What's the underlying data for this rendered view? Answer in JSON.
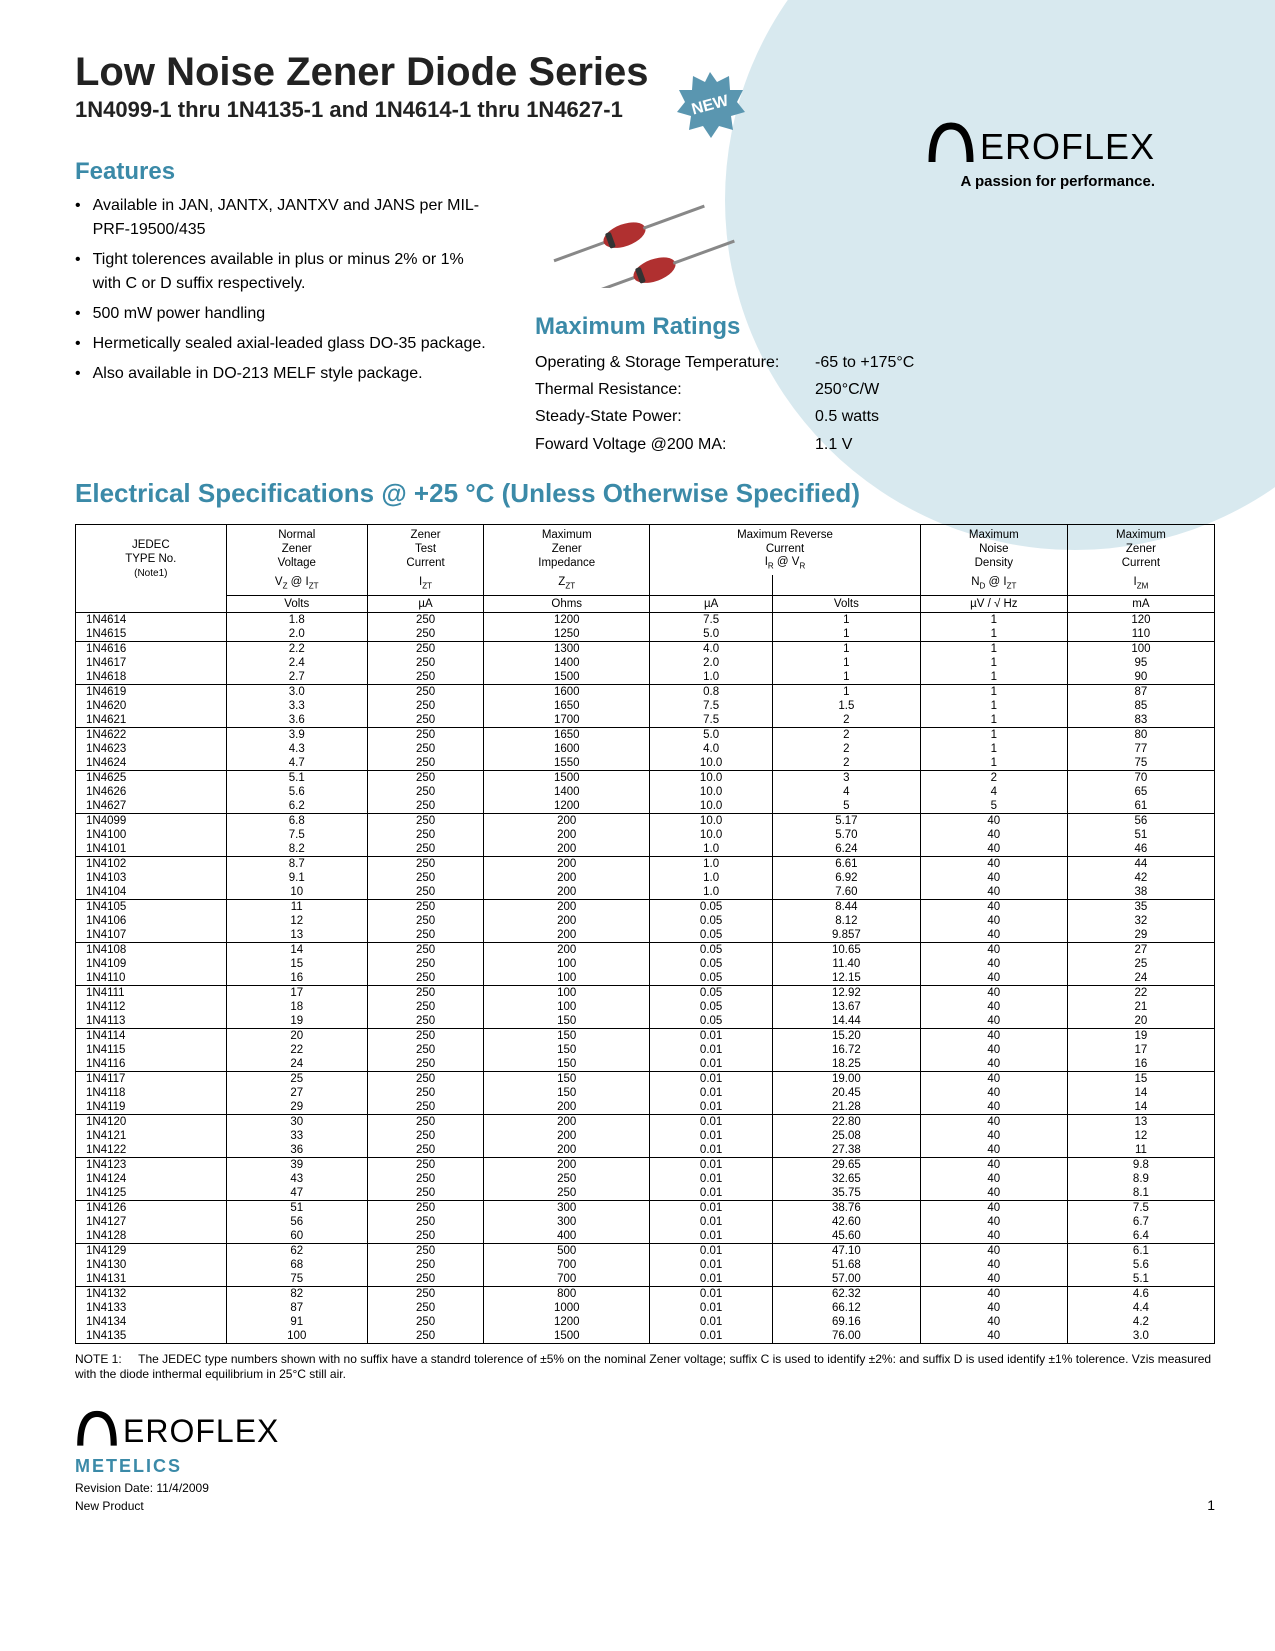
{
  "colors": {
    "accent": "#3b8aa8",
    "bg_circle": "#d8e9ef",
    "text": "#000000",
    "title": "#222222"
  },
  "header": {
    "title": "Low Noise Zener Diode Series",
    "subtitle": "1N4099-1 thru 1N4135-1 and 1N4614-1 thru 1N4627-1",
    "new_badge": "NEW"
  },
  "logo": {
    "name": "EROFLEX",
    "tagline": "A passion for performance.",
    "footer_sub": "METELICS"
  },
  "features": {
    "heading": "Features",
    "items": [
      "Available in JAN, JANTX, JANTXV and JANS per MIL-PRF-19500/435",
      "Tight tolerences available in plus or minus 2% or 1% with C or D suffix respectively.",
      "500 mW power handling",
      "Hermetically sealed axial-leaded glass DO-35 package.",
      "Also available in DO-213 MELF style package."
    ]
  },
  "ratings": {
    "heading": "Maximum Ratings",
    "rows": [
      {
        "label": "Operating & Storage Temperature:",
        "value": "-65 to +175°C"
      },
      {
        "label": "Thermal Resistance:",
        "value": "250°C/W"
      },
      {
        "label": "Steady-State Power:",
        "value": "0.5 watts"
      },
      {
        "label": "Foward Voltage @200 MA:",
        "value": "1.1 V"
      }
    ]
  },
  "elec": {
    "heading": "Electrical Specifications @ +25 °C (Unless Otherwise Specified)",
    "col_headers": [
      {
        "l1": "JEDEC TYPE No.",
        "l2": "(Note1)",
        "unit": ""
      },
      {
        "l1": "Normal Zener Voltage",
        "l2": "V_Z @ I_ZT",
        "unit": "Volts"
      },
      {
        "l1": "Zener Test Current",
        "l2": "I_ZT",
        "unit": "µA"
      },
      {
        "l1": "Maximum Zener Impedance",
        "l2": "Z_ZT",
        "unit": "Ohms"
      },
      {
        "l1": "Maximum Reverse Current I_R @ V_R",
        "l2": "",
        "unit": "µA",
        "unit2": "Volts"
      },
      {
        "l1": "Maximum Noise Density",
        "l2": "N_D @ I_ZT",
        "unit": "µV / √ Hz"
      },
      {
        "l1": "Maximum Zener Current",
        "l2": "I_ZM",
        "unit": "mA"
      }
    ],
    "groups": [
      [
        [
          "1N4614",
          "1.8",
          "250",
          "1200",
          "7.5",
          "1",
          "1",
          "120"
        ],
        [
          "1N4615",
          "2.0",
          "250",
          "1250",
          "5.0",
          "1",
          "1",
          "110"
        ]
      ],
      [
        [
          "1N4616",
          "2.2",
          "250",
          "1300",
          "4.0",
          "1",
          "1",
          "100"
        ],
        [
          "1N4617",
          "2.4",
          "250",
          "1400",
          "2.0",
          "1",
          "1",
          "95"
        ],
        [
          "1N4618",
          "2.7",
          "250",
          "1500",
          "1.0",
          "1",
          "1",
          "90"
        ]
      ],
      [
        [
          "1N4619",
          "3.0",
          "250",
          "1600",
          "0.8",
          "1",
          "1",
          "87"
        ],
        [
          "1N4620",
          "3.3",
          "250",
          "1650",
          "7.5",
          "1.5",
          "1",
          "85"
        ],
        [
          "1N4621",
          "3.6",
          "250",
          "1700",
          "7.5",
          "2",
          "1",
          "83"
        ]
      ],
      [
        [
          "1N4622",
          "3.9",
          "250",
          "1650",
          "5.0",
          "2",
          "1",
          "80"
        ],
        [
          "1N4623",
          "4.3",
          "250",
          "1600",
          "4.0",
          "2",
          "1",
          "77"
        ],
        [
          "1N4624",
          "4.7",
          "250",
          "1550",
          "10.0",
          "2",
          "1",
          "75"
        ]
      ],
      [
        [
          "1N4625",
          "5.1",
          "250",
          "1500",
          "10.0",
          "3",
          "2",
          "70"
        ],
        [
          "1N4626",
          "5.6",
          "250",
          "1400",
          "10.0",
          "4",
          "4",
          "65"
        ],
        [
          "1N4627",
          "6.2",
          "250",
          "1200",
          "10.0",
          "5",
          "5",
          "61"
        ]
      ],
      [
        [
          "1N4099",
          "6.8",
          "250",
          "200",
          "10.0",
          "5.17",
          "40",
          "56"
        ],
        [
          "1N4100",
          "7.5",
          "250",
          "200",
          "10.0",
          "5.70",
          "40",
          "51"
        ],
        [
          "1N4101",
          "8.2",
          "250",
          "200",
          "1.0",
          "6.24",
          "40",
          "46"
        ]
      ],
      [
        [
          "1N4102",
          "8.7",
          "250",
          "200",
          "1.0",
          "6.61",
          "40",
          "44"
        ],
        [
          "1N4103",
          "9.1",
          "250",
          "200",
          "1.0",
          "6.92",
          "40",
          "42"
        ],
        [
          "1N4104",
          "10",
          "250",
          "200",
          "1.0",
          "7.60",
          "40",
          "38"
        ]
      ],
      [
        [
          "1N4105",
          "11",
          "250",
          "200",
          "0.05",
          "8.44",
          "40",
          "35"
        ],
        [
          "1N4106",
          "12",
          "250",
          "200",
          "0.05",
          "8.12",
          "40",
          "32"
        ],
        [
          "1N4107",
          "13",
          "250",
          "200",
          "0.05",
          "9.857",
          "40",
          "29"
        ]
      ],
      [
        [
          "1N4108",
          "14",
          "250",
          "200",
          "0.05",
          "10.65",
          "40",
          "27"
        ],
        [
          "1N4109",
          "15",
          "250",
          "100",
          "0.05",
          "11.40",
          "40",
          "25"
        ],
        [
          "1N4110",
          "16",
          "250",
          "100",
          "0.05",
          "12.15",
          "40",
          "24"
        ]
      ],
      [
        [
          "1N4111",
          "17",
          "250",
          "100",
          "0.05",
          "12.92",
          "40",
          "22"
        ],
        [
          "1N4112",
          "18",
          "250",
          "100",
          "0.05",
          "13.67",
          "40",
          "21"
        ],
        [
          "1N4113",
          "19",
          "250",
          "150",
          "0.05",
          "14.44",
          "40",
          "20"
        ]
      ],
      [
        [
          "1N4114",
          "20",
          "250",
          "150",
          "0.01",
          "15.20",
          "40",
          "19"
        ],
        [
          "1N4115",
          "22",
          "250",
          "150",
          "0.01",
          "16.72",
          "40",
          "17"
        ],
        [
          "1N4116",
          "24",
          "250",
          "150",
          "0.01",
          "18.25",
          "40",
          "16"
        ]
      ],
      [
        [
          "1N4117",
          "25",
          "250",
          "150",
          "0.01",
          "19.00",
          "40",
          "15"
        ],
        [
          "1N4118",
          "27",
          "250",
          "150",
          "0.01",
          "20.45",
          "40",
          "14"
        ],
        [
          "1N4119",
          "29",
          "250",
          "200",
          "0.01",
          "21.28",
          "40",
          "14"
        ]
      ],
      [
        [
          "1N4120",
          "30",
          "250",
          "200",
          "0.01",
          "22.80",
          "40",
          "13"
        ],
        [
          "1N4121",
          "33",
          "250",
          "200",
          "0.01",
          "25.08",
          "40",
          "12"
        ],
        [
          "1N4122",
          "36",
          "250",
          "200",
          "0.01",
          "27.38",
          "40",
          "11"
        ]
      ],
      [
        [
          "1N4123",
          "39",
          "250",
          "200",
          "0.01",
          "29.65",
          "40",
          "9.8"
        ],
        [
          "1N4124",
          "43",
          "250",
          "250",
          "0.01",
          "32.65",
          "40",
          "8.9"
        ],
        [
          "1N4125",
          "47",
          "250",
          "250",
          "0.01",
          "35.75",
          "40",
          "8.1"
        ]
      ],
      [
        [
          "1N4126",
          "51",
          "250",
          "300",
          "0.01",
          "38.76",
          "40",
          "7.5"
        ],
        [
          "1N4127",
          "56",
          "250",
          "300",
          "0.01",
          "42.60",
          "40",
          "6.7"
        ],
        [
          "1N4128",
          "60",
          "250",
          "400",
          "0.01",
          "45.60",
          "40",
          "6.4"
        ]
      ],
      [
        [
          "1N4129",
          "62",
          "250",
          "500",
          "0.01",
          "47.10",
          "40",
          "6.1"
        ],
        [
          "1N4130",
          "68",
          "250",
          "700",
          "0.01",
          "51.68",
          "40",
          "5.6"
        ],
        [
          "1N4131",
          "75",
          "250",
          "700",
          "0.01",
          "57.00",
          "40",
          "5.1"
        ]
      ],
      [
        [
          "1N4132",
          "82",
          "250",
          "800",
          "0.01",
          "62.32",
          "40",
          "4.6"
        ],
        [
          "1N4133",
          "87",
          "250",
          "1000",
          "0.01",
          "66.12",
          "40",
          "4.4"
        ],
        [
          "1N4134",
          "91",
          "250",
          "1200",
          "0.01",
          "69.16",
          "40",
          "4.2"
        ],
        [
          "1N4135",
          "100",
          "250",
          "1500",
          "0.01",
          "76.00",
          "40",
          "3.0"
        ]
      ]
    ]
  },
  "note": {
    "label": "NOTE 1:",
    "text": "The JEDEC type numbers shown with no suffix have a standrd tolerence of ±5% on the nominal Zener voltage; suffix C is used to identify ±2%: and suffix D is used identify ±1% tolerence. Vzis measured with the diode inthermal equilibrium in 25°C still air."
  },
  "footer": {
    "revision": "Revision Date: 11/4/2009",
    "status": "New Product",
    "page": "1"
  }
}
